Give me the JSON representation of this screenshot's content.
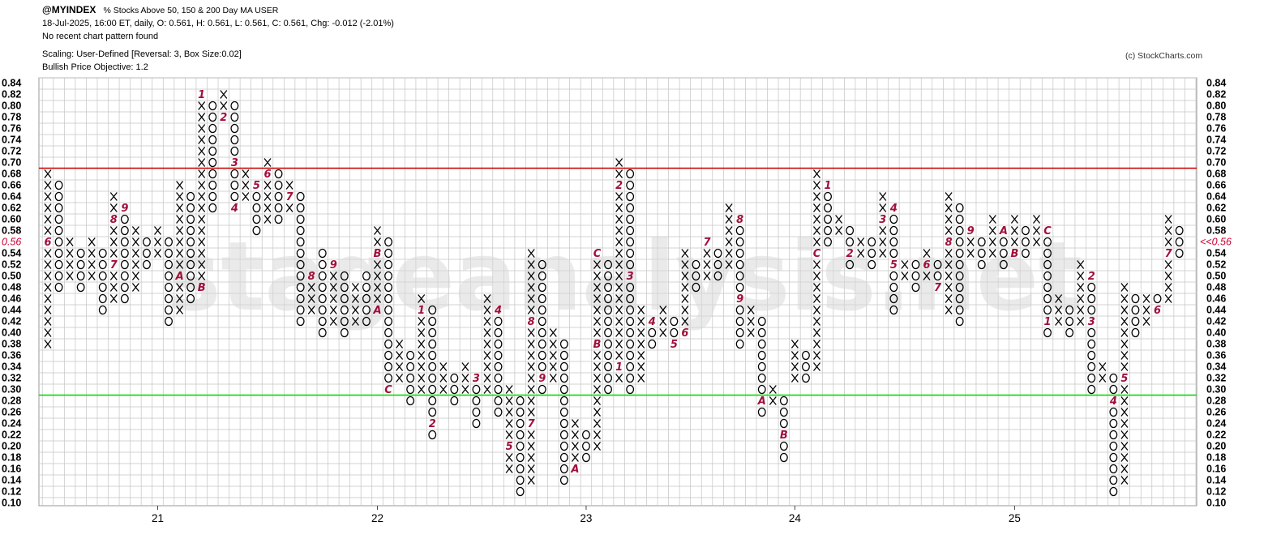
{
  "header": {
    "symbol": "@MYINDEX",
    "description": "% Stocks Above 50, 150 & 200 Day MA  USER",
    "quote_line": "18-Jul-2025, 16:00 ET, daily, O: 0.561, H: 0.561, L: 0.561, C: 0.561, Chg: -0.012 (-2.01%)",
    "pattern_line": "No recent chart pattern found",
    "scaling_line": "Scaling: User-Defined [Reversal: 3, Box Size:0.02]",
    "objective_line": "Bullish Price Objective: 1.2"
  },
  "copyright": "(c) StockCharts.com",
  "watermark": "stageanalysis.net",
  "colors": {
    "x_mark": "#000000",
    "o_mark": "#000000",
    "month_marker": "#a0103a",
    "resistance_line": "#cc0000",
    "support_line": "#00dd00",
    "grid": "#c4c4c4",
    "last_price": "#cc0033"
  },
  "chart_data": {
    "type": "point-and-figure",
    "box_size": 0.02,
    "reversal": 3,
    "ylim": [
      0.1,
      0.84
    ],
    "y_ticks": [
      "0.84",
      "0.82",
      "0.80",
      "0.78",
      "0.76",
      "0.74",
      "0.72",
      "0.70",
      "0.68",
      "0.66",
      "0.64",
      "0.62",
      "0.60",
      "0.58",
      "0.56",
      "0.54",
      "0.52",
      "0.50",
      "0.48",
      "0.46",
      "0.44",
      "0.42",
      "0.40",
      "0.38",
      "0.36",
      "0.34",
      "0.32",
      "0.30",
      "0.28",
      "0.26",
      "0.24",
      "0.22",
      "0.20",
      "0.18",
      "0.16",
      "0.14",
      "0.12",
      "0.10"
    ],
    "x_year_labels": [
      {
        "label": "21",
        "column": 10
      },
      {
        "label": "22",
        "column": 30
      },
      {
        "label": "23",
        "column": 49
      },
      {
        "label": "24",
        "column": 68
      },
      {
        "label": "25",
        "column": 88
      }
    ],
    "last_price_label": "<<0.56",
    "last_value": 0.56,
    "horizontal_lines": [
      {
        "value": 0.69,
        "role": "resistance"
      },
      {
        "value": 0.29,
        "role": "support"
      }
    ],
    "columns": [
      {
        "t": "X",
        "lo": 0.38,
        "hi": 0.68,
        "m": {
          "0.56": "6"
        }
      },
      {
        "t": "O",
        "lo": 0.48,
        "hi": 0.66
      },
      {
        "t": "X",
        "lo": 0.5,
        "hi": 0.56
      },
      {
        "t": "O",
        "lo": 0.48,
        "hi": 0.54
      },
      {
        "t": "X",
        "lo": 0.5,
        "hi": 0.56
      },
      {
        "t": "O",
        "lo": 0.44,
        "hi": 0.54
      },
      {
        "t": "X",
        "lo": 0.46,
        "hi": 0.64,
        "m": {
          "0.60": "8",
          "0.52": "7"
        }
      },
      {
        "t": "O",
        "lo": 0.46,
        "hi": 0.62,
        "m": {
          "0.62": "9"
        }
      },
      {
        "t": "X",
        "lo": 0.48,
        "hi": 0.58
      },
      {
        "t": "O",
        "lo": 0.52,
        "hi": 0.56
      },
      {
        "t": "X",
        "lo": 0.54,
        "hi": 0.58
      },
      {
        "t": "O",
        "lo": 0.42,
        "hi": 0.56
      },
      {
        "t": "X",
        "lo": 0.44,
        "hi": 0.66,
        "m": {
          "0.50": "A"
        }
      },
      {
        "t": "O",
        "lo": 0.46,
        "hi": 0.64
      },
      {
        "t": "X",
        "lo": 0.48,
        "hi": 0.82,
        "m": {
          "0.82": "1",
          "0.48": "B"
        }
      },
      {
        "t": "O",
        "lo": 0.62,
        "hi": 0.8
      },
      {
        "t": "X",
        "lo": 0.78,
        "hi": 0.82,
        "m": {
          "0.78": "2"
        }
      },
      {
        "t": "O",
        "lo": 0.62,
        "hi": 0.8,
        "m": {
          "0.70": "3",
          "0.62": "4"
        }
      },
      {
        "t": "X",
        "lo": 0.64,
        "hi": 0.68
      },
      {
        "t": "O",
        "lo": 0.58,
        "hi": 0.66,
        "m": {
          "0.66": "5"
        }
      },
      {
        "t": "X",
        "lo": 0.6,
        "hi": 0.7,
        "m": {
          "0.68": "6"
        }
      },
      {
        "t": "O",
        "lo": 0.6,
        "hi": 0.68
      },
      {
        "t": "X",
        "lo": 0.62,
        "hi": 0.66,
        "m": {
          "0.64": "7"
        }
      },
      {
        "t": "O",
        "lo": 0.42,
        "hi": 0.64
      },
      {
        "t": "X",
        "lo": 0.44,
        "hi": 0.5,
        "m": {
          "0.50": "8"
        }
      },
      {
        "t": "O",
        "lo": 0.4,
        "hi": 0.54
      },
      {
        "t": "X",
        "lo": 0.42,
        "hi": 0.52,
        "m": {
          "0.52": "9"
        }
      },
      {
        "t": "O",
        "lo": 0.4,
        "hi": 0.5
      },
      {
        "t": "X",
        "lo": 0.42,
        "hi": 0.48
      },
      {
        "t": "O",
        "lo": 0.42,
        "hi": 0.5
      },
      {
        "t": "X",
        "lo": 0.44,
        "hi": 0.58,
        "m": {
          "0.54": "B",
          "0.44": "A"
        }
      },
      {
        "t": "O",
        "lo": 0.3,
        "hi": 0.56,
        "m": {
          "0.30": "C"
        }
      },
      {
        "t": "X",
        "lo": 0.32,
        "hi": 0.38
      },
      {
        "t": "O",
        "lo": 0.28,
        "hi": 0.36
      },
      {
        "t": "X",
        "lo": 0.3,
        "hi": 0.46,
        "m": {
          "0.44": "1"
        }
      },
      {
        "t": "O",
        "lo": 0.22,
        "hi": 0.44,
        "m": {
          "0.24": "2"
        }
      },
      {
        "t": "X",
        "lo": 0.3,
        "hi": 0.34
      },
      {
        "t": "O",
        "lo": 0.28,
        "hi": 0.32
      },
      {
        "t": "X",
        "lo": 0.3,
        "hi": 0.34
      },
      {
        "t": "O",
        "lo": 0.24,
        "hi": 0.32,
        "m": {
          "0.32": "3"
        }
      },
      {
        "t": "X",
        "lo": 0.3,
        "hi": 0.46
      },
      {
        "t": "O",
        "lo": 0.26,
        "hi": 0.44,
        "m": {
          "0.44": "4"
        }
      },
      {
        "t": "X",
        "lo": 0.16,
        "hi": 0.3,
        "m": {
          "0.20": "5"
        }
      },
      {
        "t": "O",
        "lo": 0.12,
        "hi": 0.28,
        "m": {
          "0.30": "6"
        }
      },
      {
        "t": "X",
        "lo": 0.14,
        "hi": 0.54,
        "m": {
          "0.42": "8",
          "0.24": "7"
        }
      },
      {
        "t": "O",
        "lo": 0.3,
        "hi": 0.52,
        "m": {
          "0.32": "9"
        }
      },
      {
        "t": "X",
        "lo": 0.32,
        "hi": 0.4
      },
      {
        "t": "O",
        "lo": 0.14,
        "hi": 0.38
      },
      {
        "t": "X",
        "lo": 0.16,
        "hi": 0.24,
        "m": {
          "0.16": "A"
        }
      },
      {
        "t": "O",
        "lo": 0.18,
        "hi": 0.22
      },
      {
        "t": "X",
        "lo": 0.2,
        "hi": 0.54,
        "m": {
          "0.54": "C",
          "0.38": "B"
        }
      },
      {
        "t": "O",
        "lo": 0.3,
        "hi": 0.52
      },
      {
        "t": "X",
        "lo": 0.32,
        "hi": 0.7,
        "m": {
          "0.34": "1",
          "0.66": "2"
        }
      },
      {
        "t": "O",
        "lo": 0.3,
        "hi": 0.68,
        "m": {
          "0.50": "3"
        }
      },
      {
        "t": "X",
        "lo": 0.32,
        "hi": 0.44
      },
      {
        "t": "O",
        "lo": 0.38,
        "hi": 0.42,
        "m": {
          "0.42": "4"
        }
      },
      {
        "t": "X",
        "lo": 0.4,
        "hi": 0.44
      },
      {
        "t": "O",
        "lo": 0.38,
        "hi": 0.42,
        "m": {
          "0.38": "5"
        }
      },
      {
        "t": "X",
        "lo": 0.4,
        "hi": 0.54,
        "m": {
          "0.40": "6"
        }
      },
      {
        "t": "O",
        "lo": 0.48,
        "hi": 0.52
      },
      {
        "t": "X",
        "lo": 0.5,
        "hi": 0.56,
        "m": {
          "0.56": "7"
        }
      },
      {
        "t": "O",
        "lo": 0.5,
        "hi": 0.54
      },
      {
        "t": "X",
        "lo": 0.52,
        "hi": 0.62
      },
      {
        "t": "O",
        "lo": 0.38,
        "hi": 0.6,
        "m": {
          "0.60": "8",
          "0.46": "9"
        }
      },
      {
        "t": "X",
        "lo": 0.4,
        "hi": 0.44
      },
      {
        "t": "O",
        "lo": 0.26,
        "hi": 0.42,
        "m": {
          "0.28": "A"
        }
      },
      {
        "t": "X",
        "lo": 0.28,
        "hi": 0.3
      },
      {
        "t": "O",
        "lo": 0.18,
        "hi": 0.28,
        "m": {
          "0.22": "B"
        }
      },
      {
        "t": "X",
        "lo": 0.32,
        "hi": 0.38
      },
      {
        "t": "O",
        "lo": 0.32,
        "hi": 0.36
      },
      {
        "t": "X",
        "lo": 0.34,
        "hi": 0.68,
        "m": {
          "0.54": "C"
        }
      },
      {
        "t": "O",
        "lo": 0.56,
        "hi": 0.66,
        "m": {
          "0.66": "1"
        }
      },
      {
        "t": "X",
        "lo": 0.58,
        "hi": 0.6
      },
      {
        "t": "O",
        "lo": 0.52,
        "hi": 0.58,
        "m": {
          "0.54": "2"
        }
      },
      {
        "t": "X",
        "lo": 0.54,
        "hi": 0.56
      },
      {
        "t": "O",
        "lo": 0.52,
        "hi": 0.56
      },
      {
        "t": "X",
        "lo": 0.54,
        "hi": 0.64,
        "m": {
          "0.60": "3"
        }
      },
      {
        "t": "O",
        "lo": 0.44,
        "hi": 0.62,
        "m": {
          "0.62": "4",
          "0.52": "5"
        }
      },
      {
        "t": "X",
        "lo": 0.5,
        "hi": 0.52
      },
      {
        "t": "O",
        "lo": 0.48,
        "hi": 0.52
      },
      {
        "t": "X",
        "lo": 0.5,
        "hi": 0.54,
        "m": {
          "0.52": "6"
        }
      },
      {
        "t": "O",
        "lo": 0.48,
        "hi": 0.52,
        "m": {
          "0.48": "7"
        }
      },
      {
        "t": "X",
        "lo": 0.44,
        "hi": 0.64,
        "m": {
          "0.56": "8"
        }
      },
      {
        "t": "O",
        "lo": 0.42,
        "hi": 0.62
      },
      {
        "t": "X",
        "lo": 0.54,
        "hi": 0.58,
        "m": {
          "0.58": "9"
        }
      },
      {
        "t": "O",
        "lo": 0.52,
        "hi": 0.56
      },
      {
        "t": "X",
        "lo": 0.54,
        "hi": 0.6
      },
      {
        "t": "O",
        "lo": 0.52,
        "hi": 0.58,
        "m": {
          "0.58": "A"
        }
      },
      {
        "t": "X",
        "lo": 0.54,
        "hi": 0.6,
        "m": {
          "0.54": "B"
        }
      },
      {
        "t": "O",
        "lo": 0.54,
        "hi": 0.58
      },
      {
        "t": "X",
        "lo": 0.56,
        "hi": 0.6
      },
      {
        "t": "O",
        "lo": 0.4,
        "hi": 0.58,
        "m": {
          "0.58": "C",
          "0.42": "1"
        }
      },
      {
        "t": "X",
        "lo": 0.42,
        "hi": 0.46
      },
      {
        "t": "O",
        "lo": 0.4,
        "hi": 0.44
      },
      {
        "t": "X",
        "lo": 0.42,
        "hi": 0.52
      },
      {
        "t": "O",
        "lo": 0.3,
        "hi": 0.5,
        "m": {
          "0.50": "2",
          "0.42": "3"
        }
      },
      {
        "t": "X",
        "lo": 0.32,
        "hi": 0.34
      },
      {
        "t": "O",
        "lo": 0.12,
        "hi": 0.32,
        "m": {
          "0.28": "4"
        }
      },
      {
        "t": "X",
        "lo": 0.14,
        "hi": 0.48,
        "m": {
          "0.32": "5"
        }
      },
      {
        "t": "O",
        "lo": 0.4,
        "hi": 0.46
      },
      {
        "t": "X",
        "lo": 0.42,
        "hi": 0.46
      },
      {
        "t": "O",
        "lo": 0.44,
        "hi": 0.46,
        "m": {
          "0.44": "6"
        }
      },
      {
        "t": "X",
        "lo": 0.46,
        "hi": 0.6,
        "m": {
          "0.54": "7"
        }
      },
      {
        "t": "O",
        "lo": 0.54,
        "hi": 0.58
      }
    ]
  }
}
